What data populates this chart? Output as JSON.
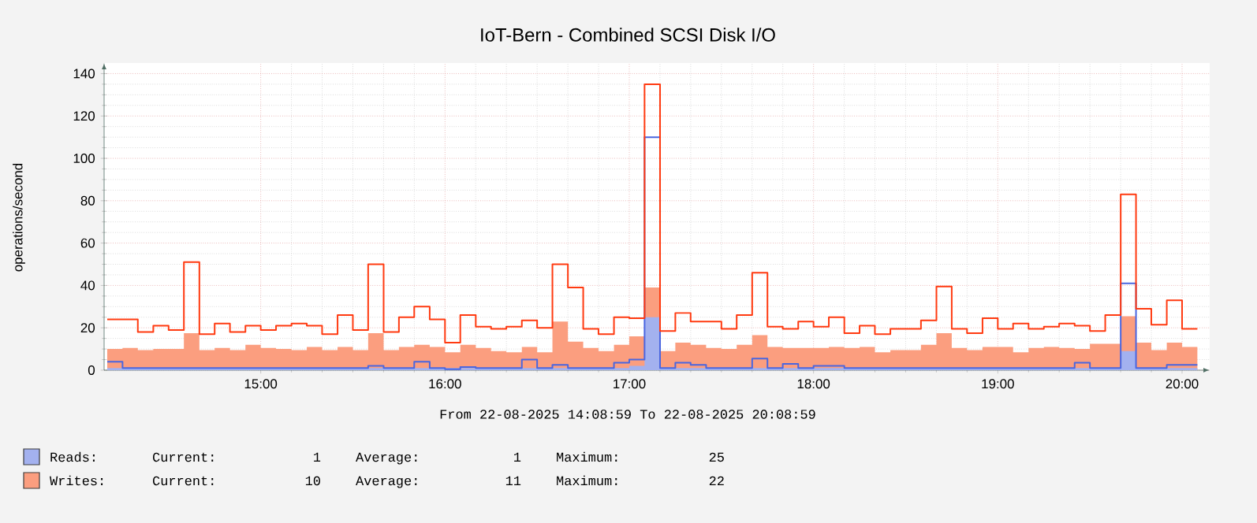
{
  "chart_data": {
    "type": "step",
    "title": "IoT-Bern - Combined SCSI Disk I/O",
    "ylabel": "operations/second",
    "annotations": [
      "From 22-08-2025 14:08:59 To 22-08-2025 20:08:59",
      "Current:",
      "1",
      "Average:",
      "1",
      "Maximum:",
      "25",
      "Current:",
      "10",
      "Average:",
      "11",
      "Maximum:",
      "22"
    ],
    "x": [
      14.167,
      14.25,
      14.333,
      14.417,
      14.5,
      14.583,
      14.667,
      14.75,
      14.833,
      14.917,
      15,
      15.083,
      15.167,
      15.25,
      15.333,
      15.417,
      15.5,
      15.583,
      15.667,
      15.75,
      15.833,
      15.917,
      16,
      16.083,
      16.167,
      16.25,
      16.333,
      16.417,
      16.5,
      16.583,
      16.667,
      16.75,
      16.833,
      16.917,
      17,
      17.083,
      17.167,
      17.25,
      17.333,
      17.417,
      17.5,
      17.583,
      17.667,
      17.75,
      17.833,
      17.917,
      18,
      18.083,
      18.167,
      18.25,
      18.333,
      18.417,
      18.5,
      18.583,
      18.667,
      18.75,
      18.833,
      18.917,
      19,
      19.083,
      19.167,
      19.25,
      19.333,
      19.417,
      19.5,
      19.583,
      19.667,
      19.75,
      19.833,
      19.917,
      20,
      20.083
    ],
    "stacked": true,
    "series": [
      {
        "name": "Reads:",
        "type": "area",
        "color": "#a3b1ef",
        "values": [
          1,
          1,
          1,
          1,
          1,
          1,
          1,
          1,
          1,
          1,
          1,
          1,
          1,
          1,
          1,
          1,
          1,
          1,
          1,
          1,
          1,
          1,
          1,
          1,
          1,
          1,
          1,
          1,
          1,
          1,
          1,
          1,
          1,
          1,
          2,
          25,
          1,
          1,
          1,
          1,
          1,
          1,
          1,
          1,
          1,
          1,
          1,
          1,
          1,
          1,
          1,
          1,
          1,
          1,
          1,
          1,
          1,
          1,
          1,
          1,
          1,
          1,
          1,
          1,
          1,
          1,
          9,
          1,
          1,
          1,
          1,
          1
        ]
      },
      {
        "name": "Writes:",
        "type": "area",
        "color": "#fb9e7f",
        "values": [
          9,
          9.5,
          8.5,
          9,
          9,
          16.5,
          8.5,
          9.5,
          8.5,
          11,
          9.5,
          9,
          8.5,
          10,
          8.5,
          10,
          8.5,
          16.5,
          8.5,
          10,
          11,
          10,
          7.5,
          11,
          9.5,
          8,
          7.5,
          10,
          7.5,
          22,
          12.5,
          9.5,
          8,
          11,
          14,
          14,
          8,
          12,
          11,
          9.5,
          9,
          11,
          15.5,
          10,
          9.5,
          9.5,
          9.5,
          10,
          9.5,
          10,
          7.5,
          8.5,
          8.5,
          11,
          16.5,
          9.5,
          8.5,
          10,
          10,
          7.5,
          9.5,
          10,
          9.5,
          9,
          11.5,
          11.5,
          16.5,
          12,
          8.5,
          12,
          10,
          10
        ]
      },
      {
        "color": "#4a66e0",
        "values": [
          4,
          1,
          1,
          1,
          1,
          1,
          1,
          1,
          1,
          1,
          1,
          1,
          1,
          1,
          1,
          1,
          1,
          2,
          1,
          1,
          4,
          1,
          0.5,
          1.5,
          1,
          1,
          1,
          5,
          1,
          2.5,
          1,
          1,
          1,
          3.5,
          5,
          110,
          1,
          3.5,
          2.5,
          1,
          1,
          1,
          5.5,
          1,
          3,
          1,
          2,
          2,
          1,
          1,
          1,
          1,
          1,
          1,
          1,
          1,
          1,
          1,
          1,
          1,
          1,
          1,
          1,
          3.5,
          1,
          1,
          41,
          1,
          1,
          2.5,
          2.5,
          2.5
        ]
      },
      {
        "color": "#ff3a10",
        "values": [
          24,
          24,
          18,
          21,
          19,
          51,
          17,
          22,
          18,
          21,
          19,
          21,
          22,
          21,
          17,
          26,
          19,
          50,
          18,
          25,
          30,
          24,
          13,
          26,
          20.5,
          19.5,
          20.5,
          23.5,
          20,
          50,
          39,
          19.5,
          17,
          25,
          24.5,
          135,
          18.5,
          27,
          23,
          23,
          19.5,
          26,
          46,
          20.5,
          19.5,
          23,
          20.5,
          25,
          17.5,
          21,
          17,
          19.5,
          19.5,
          23.5,
          39.5,
          19.5,
          17.5,
          24.5,
          19.5,
          22,
          19.5,
          20.5,
          22,
          21,
          18.5,
          26,
          83,
          29,
          21.5,
          33,
          19.5,
          19.5
        ]
      }
    ],
    "xlim": [
      14.15,
      20.15
    ],
    "ylim": [
      0,
      145
    ],
    "xticks": [
      {
        "value": 15,
        "label": "15:00"
      },
      {
        "value": 16,
        "label": "16:00"
      },
      {
        "value": 17,
        "label": "17:00"
      },
      {
        "value": 18,
        "label": "18:00"
      },
      {
        "value": 19,
        "label": "19:00"
      },
      {
        "value": 20,
        "label": "20:00"
      }
    ],
    "yticks": [
      0,
      20,
      40,
      60,
      80,
      100,
      120,
      140
    ],
    "grid": true,
    "legend": "bottom"
  }
}
